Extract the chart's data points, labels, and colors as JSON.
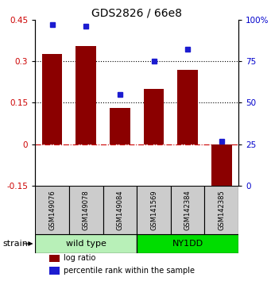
{
  "title": "GDS2826 / 66e8",
  "samples": [
    "GSM149076",
    "GSM149078",
    "GSM149084",
    "GSM141569",
    "GSM142384",
    "GSM142385"
  ],
  "log_ratios": [
    0.325,
    0.355,
    0.13,
    0.2,
    0.27,
    -0.2
  ],
  "percentile_ranks": [
    97,
    96,
    55,
    75,
    82,
    27
  ],
  "ylim_left": [
    -0.15,
    0.45
  ],
  "ylim_right": [
    0,
    100
  ],
  "yticks_left": [
    -0.15,
    0,
    0.15,
    0.3,
    0.45
  ],
  "yticks_right": [
    0,
    25,
    50,
    75,
    100
  ],
  "hlines": [
    0.15,
    0.3
  ],
  "bar_color": "#8B0000",
  "dot_color": "#1C1CD0",
  "groups": [
    {
      "label": "wild type",
      "indices": [
        0,
        1,
        2
      ],
      "color": "#B8F0B8"
    },
    {
      "label": "NY1DD",
      "indices": [
        3,
        4,
        5
      ],
      "color": "#00DD00"
    }
  ],
  "strain_label": "strain",
  "legend_bar_label": "log ratio",
  "legend_dot_label": "percentile rank within the sample",
  "left_label_color": "#CC0000",
  "right_label_color": "#0000CC",
  "grid_dotted_color": "#000000",
  "zero_line_color": "#CC0000",
  "panel_bg": "#CCCCCC",
  "bar_width": 0.6
}
